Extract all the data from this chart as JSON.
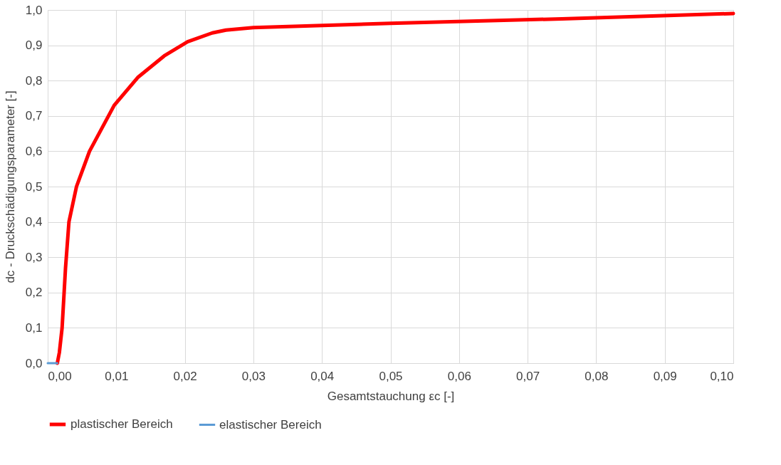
{
  "chart_data": {
    "type": "line",
    "xlabel": "Gesamtstauchung  εc [-]",
    "ylabel": "dc - Druckschädigungsparameter [-]",
    "xlim": [
      0,
      0.1
    ],
    "ylim": [
      0,
      1
    ],
    "xticks": [
      {
        "value": 0,
        "label": "0,00"
      },
      {
        "value": 0.01,
        "label": "0,01"
      },
      {
        "value": 0.02,
        "label": "0,02"
      },
      {
        "value": 0.03,
        "label": "0,03"
      },
      {
        "value": 0.04,
        "label": "0,04"
      },
      {
        "value": 0.05,
        "label": "0,05"
      },
      {
        "value": 0.06,
        "label": "0,06"
      },
      {
        "value": 0.07,
        "label": "0,07"
      },
      {
        "value": 0.08,
        "label": "0,08"
      },
      {
        "value": 0.09,
        "label": "0,09"
      },
      {
        "value": 0.1,
        "label": "0,10"
      }
    ],
    "yticks": [
      {
        "value": 0,
        "label": "0,0"
      },
      {
        "value": 0.1,
        "label": "0,1"
      },
      {
        "value": 0.2,
        "label": "0,2"
      },
      {
        "value": 0.3,
        "label": "0,3"
      },
      {
        "value": 0.4,
        "label": "0,4"
      },
      {
        "value": 0.5,
        "label": "0,5"
      },
      {
        "value": 0.6,
        "label": "0,6"
      },
      {
        "value": 0.7,
        "label": "0,7"
      },
      {
        "value": 0.8,
        "label": "0,8"
      },
      {
        "value": 0.9,
        "label": "0,9"
      },
      {
        "value": 1,
        "label": "1,0"
      }
    ],
    "grid": true,
    "legend": "bottom",
    "marker": "none",
    "line_style": "solid",
    "series": [
      {
        "name": "plastischer Bereich",
        "color": "#ff0000",
        "x": [
          0.0014,
          0.0017,
          0.0021,
          0.0026,
          0.0031,
          0.0042,
          0.0061,
          0.0097,
          0.0132,
          0.017,
          0.0204,
          0.024,
          0.026,
          0.03,
          0.05,
          0.075,
          0.1
        ],
        "values": [
          0,
          0.03,
          0.1,
          0.27,
          0.4,
          0.5,
          0.6,
          0.73,
          0.81,
          0.87,
          0.91,
          0.935,
          0.943,
          0.95,
          0.962,
          0.975,
          0.99
        ]
      },
      {
        "name": "elastischer Bereich",
        "color": "#5b9bd5",
        "x": [
          0,
          0.0014
        ],
        "values": [
          0,
          0
        ]
      }
    ]
  }
}
